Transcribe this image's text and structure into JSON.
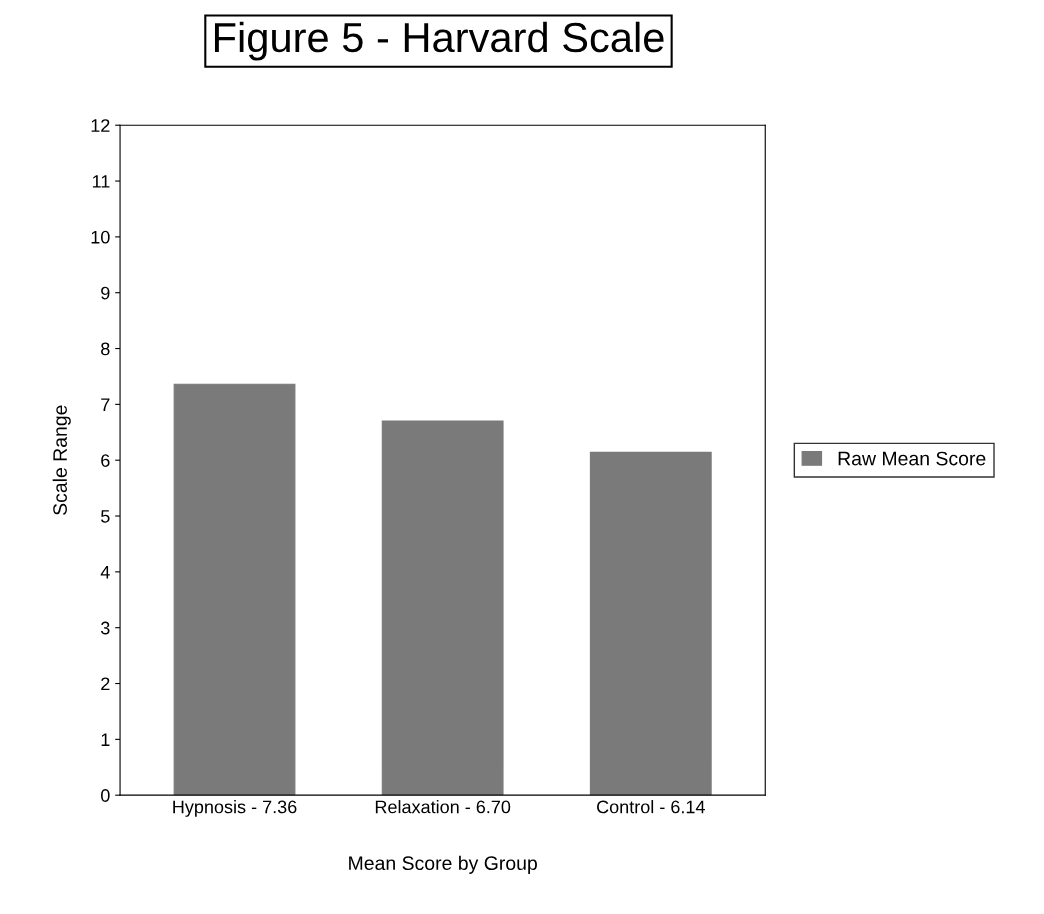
{
  "chart_data": {
    "type": "bar",
    "title": "Figure 5 - Harvard Scale",
    "xlabel": "Mean Score by Group",
    "ylabel": "Scale Range",
    "categories": [
      "Hypnosis - 7.36",
      "Relaxation - 6.70",
      "Control - 6.14"
    ],
    "series": [
      {
        "name": "Raw Mean Score",
        "color": "#7a7a7a",
        "values": [
          7.36,
          6.7,
          6.14
        ]
      }
    ],
    "ylim": [
      0,
      12
    ],
    "yticks": [
      0,
      1,
      2,
      3,
      4,
      5,
      6,
      7,
      8,
      9,
      10,
      11,
      12
    ],
    "grid": false,
    "legend": "right"
  }
}
